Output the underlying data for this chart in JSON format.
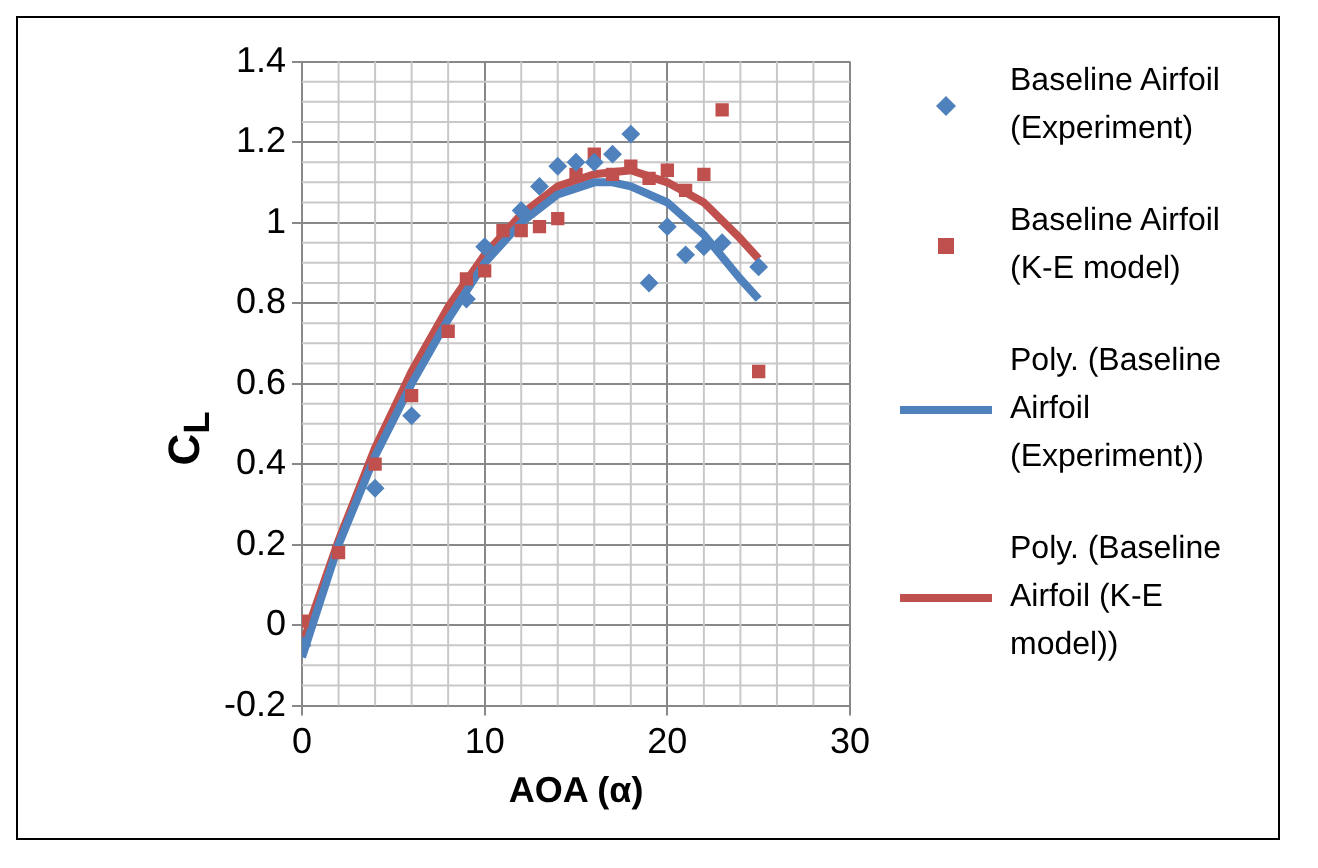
{
  "chart_data": {
    "type": "scatter",
    "xlabel": "AOA (α)",
    "ylabel": "C$_{L}$",
    "xlim": [
      0,
      30
    ],
    "xticks": [
      0,
      10,
      20,
      30
    ],
    "ylim": [
      -0.2,
      1.4
    ],
    "yticks": [
      -0.2,
      0,
      0.2,
      0.4,
      0.6,
      0.8,
      1,
      1.2,
      1.4
    ],
    "grid": true,
    "legend": "right",
    "series": [
      {
        "name": "Baseline Airfoil (Experiment)",
        "type": "scatter",
        "marker": "diamond",
        "color": "#4f81bd",
        "x": [
          0,
          4,
          6,
          9,
          10,
          12,
          13,
          14,
          15,
          16,
          17,
          18,
          19,
          20,
          21,
          22,
          23,
          25
        ],
        "values": [
          -0.05,
          0.34,
          0.52,
          0.81,
          0.94,
          1.03,
          1.09,
          1.14,
          1.15,
          1.15,
          1.17,
          1.22,
          0.85,
          0.99,
          0.92,
          0.94,
          0.95,
          0.89
        ]
      },
      {
        "name": "Baseline Airfoil (K-E model)",
        "type": "scatter",
        "marker": "square",
        "color": "#c0504d",
        "x": [
          0,
          2,
          4,
          6,
          8,
          9,
          10,
          11,
          12,
          13,
          14,
          15,
          16,
          17,
          18,
          19,
          20,
          21,
          22,
          23,
          25
        ],
        "values": [
          0.01,
          0.18,
          0.4,
          0.57,
          0.73,
          0.86,
          0.88,
          0.98,
          0.98,
          0.99,
          1.01,
          1.12,
          1.17,
          1.12,
          1.14,
          1.11,
          1.13,
          1.08,
          1.12,
          1.28,
          0.63
        ]
      },
      {
        "name": "Poly. (Baseline Airfoil (Experiment))",
        "type": "line",
        "marker": "none",
        "color": "#4f81bd",
        "x": [
          0,
          2,
          4,
          6,
          8,
          10,
          12,
          14,
          16,
          17,
          18,
          20,
          22,
          24,
          25
        ],
        "values": [
          -0.08,
          0.2,
          0.42,
          0.6,
          0.76,
          0.9,
          1.0,
          1.07,
          1.1,
          1.1,
          1.09,
          1.05,
          0.97,
          0.86,
          0.81
        ]
      },
      {
        "name": "Poly. (Baseline Airfoil (K-E model))",
        "type": "line",
        "marker": "none",
        "color": "#c0504d",
        "x": [
          0,
          2,
          4,
          6,
          8,
          10,
          12,
          14,
          16,
          18,
          20,
          22,
          24,
          25
        ],
        "values": [
          -0.05,
          0.21,
          0.44,
          0.63,
          0.79,
          0.92,
          1.02,
          1.09,
          1.12,
          1.13,
          1.1,
          1.05,
          0.96,
          0.91
        ]
      }
    ]
  }
}
